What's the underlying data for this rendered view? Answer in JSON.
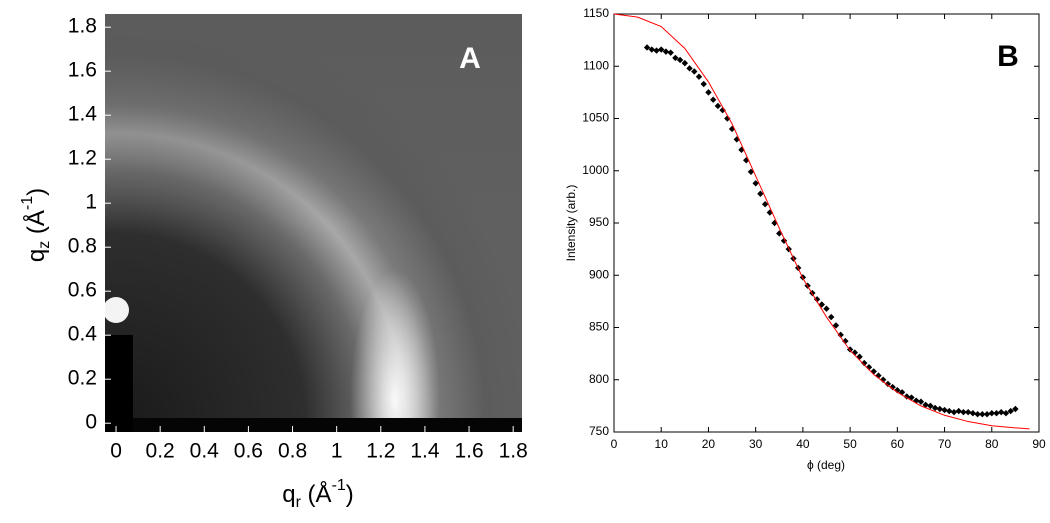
{
  "chart_data": [
    {
      "type": "image",
      "annotation": "A",
      "x_label": [
        "q",
        "r",
        " (Å",
        "-1",
        ")"
      ],
      "y_label": [
        "q",
        "z",
        " (Å",
        "-1",
        ")"
      ],
      "xlim": [
        -0.05,
        1.84
      ],
      "ylim": [
        -0.04,
        1.86
      ],
      "xticks": [
        0,
        0.2,
        0.4,
        0.6,
        0.8,
        1,
        1.2,
        1.4,
        1.6,
        1.8
      ],
      "yticks": [
        0,
        0.2,
        0.4,
        0.6,
        0.8,
        1,
        1.2,
        1.4,
        1.6,
        1.8
      ]
    },
    {
      "type": "scatter",
      "annotation": "B",
      "x_label": "ϕ (deg)",
      "y_label": "Intensity (arb.)",
      "xlim": [
        0,
        90
      ],
      "ylim": [
        750,
        1150
      ],
      "xticks": [
        0,
        10,
        20,
        30,
        40,
        50,
        60,
        70,
        80,
        90
      ],
      "yticks": [
        750,
        800,
        850,
        900,
        950,
        1000,
        1050,
        1100,
        1150
      ],
      "series": [
        {
          "type": "scatter",
          "color": "#000000",
          "x": [
            7,
            8,
            9,
            10,
            11,
            12,
            13,
            14,
            15,
            16,
            17,
            18,
            19,
            20,
            21,
            22,
            23,
            24,
            25,
            26,
            27,
            28,
            29,
            30,
            31,
            32,
            33,
            34,
            35,
            36,
            37,
            38,
            39,
            40,
            41,
            42,
            43,
            44,
            45,
            46,
            47,
            48,
            49,
            50,
            51,
            52,
            53,
            54,
            55,
            56,
            57,
            58,
            59,
            60,
            61,
            62,
            63,
            64,
            65,
            66,
            67,
            68,
            69,
            70,
            71,
            72,
            73,
            74,
            75,
            76,
            77,
            78,
            79,
            80,
            81,
            82,
            83,
            84,
            85
          ],
          "values": [
            1118,
            1116,
            1115,
            1116,
            1114,
            1113,
            1108,
            1106,
            1103,
            1098,
            1095,
            1090,
            1083,
            1075,
            1068,
            1062,
            1058,
            1050,
            1040,
            1030,
            1020,
            1010,
            999,
            988,
            978,
            968,
            960,
            950,
            940,
            933,
            925,
            916,
            907,
            898,
            890,
            883,
            877,
            872,
            868,
            860,
            852,
            843,
            837,
            829,
            826,
            822,
            816,
            812,
            808,
            804,
            800,
            796,
            793,
            790,
            788,
            784,
            783,
            780,
            779,
            776,
            775,
            773,
            772,
            771,
            770,
            769,
            770,
            769,
            769,
            768,
            767,
            767,
            767,
            768,
            768,
            769,
            768,
            770,
            772
          ]
        },
        {
          "type": "line",
          "color": "#ff0000",
          "x": [
            0,
            5,
            10,
            15,
            20,
            25,
            30,
            35,
            40,
            45,
            50,
            55,
            60,
            65,
            70,
            75,
            80,
            85,
            88
          ],
          "values": [
            1150,
            1147,
            1138,
            1117,
            1085,
            1045,
            995,
            945,
            897,
            860,
            828,
            805,
            788,
            775,
            766,
            760,
            756,
            754,
            753
          ]
        }
      ]
    }
  ]
}
